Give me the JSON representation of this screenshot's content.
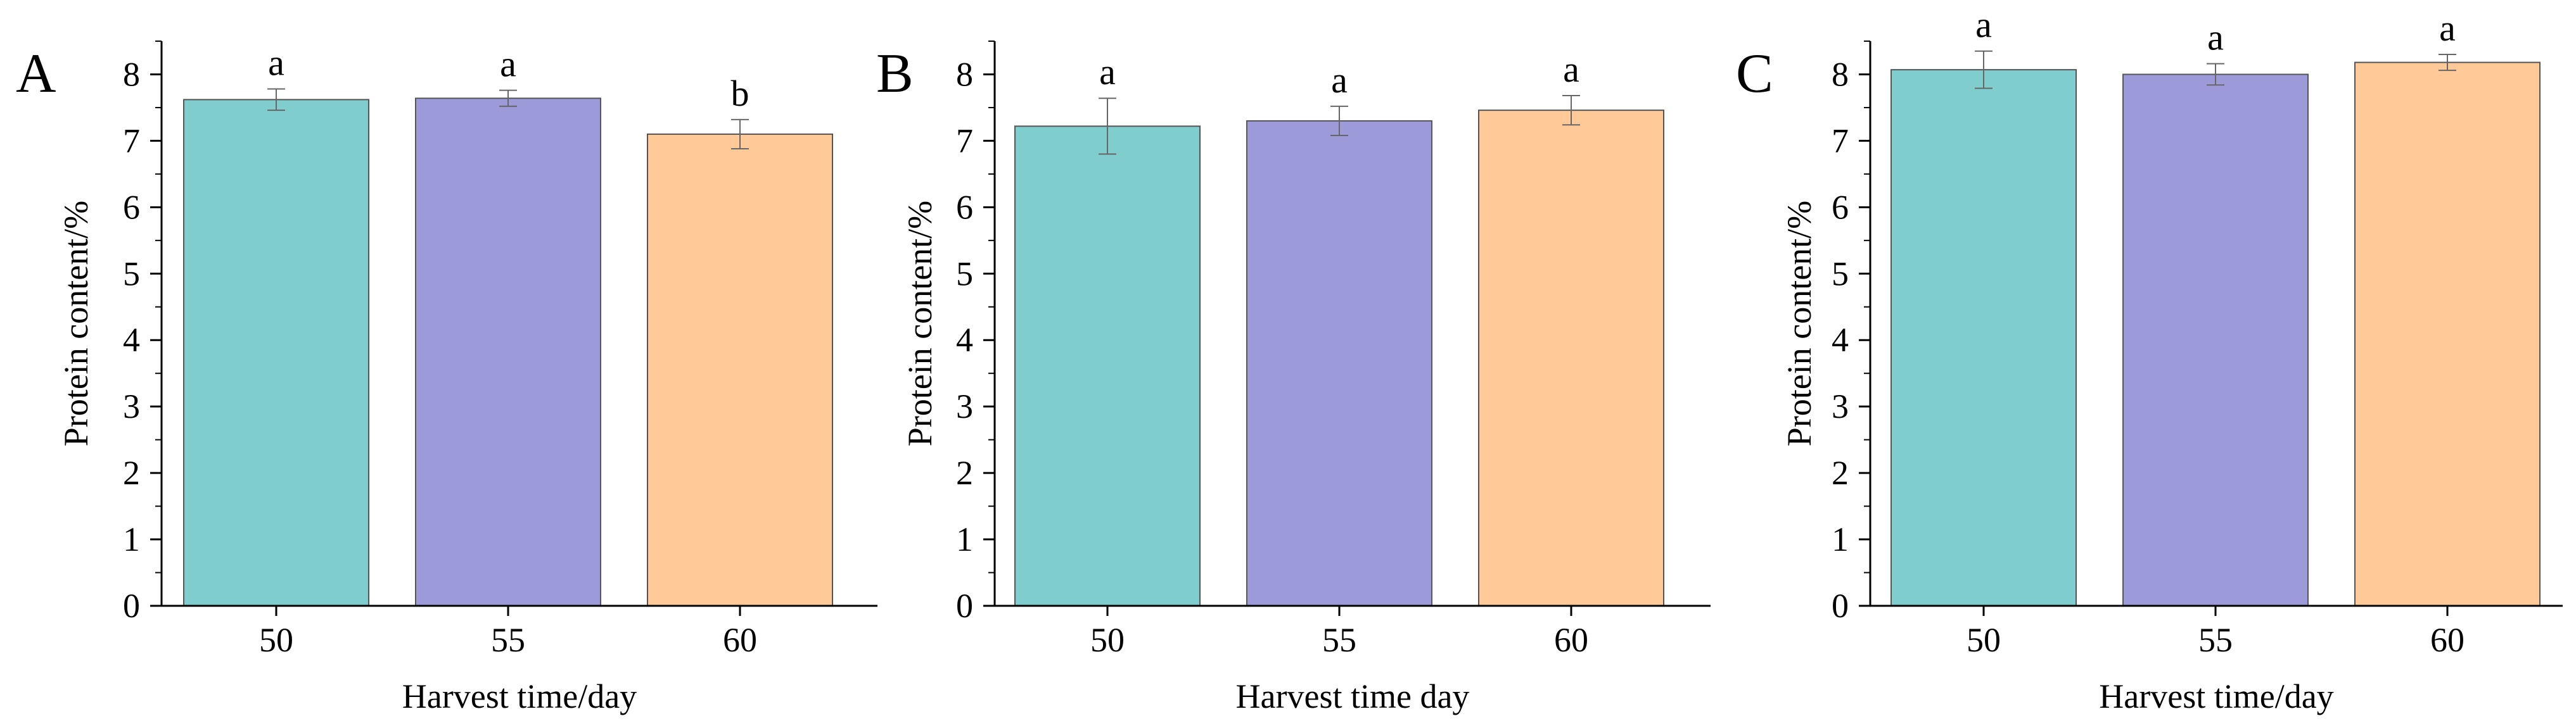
{
  "chart_data": [
    {
      "type": "bar",
      "panel_label": "A",
      "categories": [
        "50",
        "55",
        "60"
      ],
      "values": [
        7.62,
        7.64,
        7.1
      ],
      "errors": [
        0.16,
        0.12,
        0.22
      ],
      "significance": [
        "a",
        "a",
        "b"
      ],
      "colors": [
        "#80cdcd",
        "#9c9ad9",
        "#ffca98"
      ],
      "xlabel": "Harvest time/day",
      "ylabel": "Protein content/%",
      "ylim": [
        0,
        8.5
      ],
      "yticks": [
        "0",
        "1",
        "2",
        "3",
        "4",
        "5",
        "6",
        "7",
        "8"
      ],
      "grid": false
    },
    {
      "type": "bar",
      "panel_label": "B",
      "categories": [
        "50",
        "55",
        "60"
      ],
      "values": [
        7.22,
        7.3,
        7.46
      ],
      "errors": [
        0.42,
        0.22,
        0.22
      ],
      "significance": [
        "a",
        "a",
        "a"
      ],
      "colors": [
        "#80cdcd",
        "#9c9ad9",
        "#ffca98"
      ],
      "xlabel": "Harvest time day",
      "ylabel": "Protein content/%",
      "ylim": [
        0,
        8.5
      ],
      "yticks": [
        "0",
        "1",
        "2",
        "3",
        "4",
        "5",
        "6",
        "7",
        "8"
      ],
      "grid": false
    },
    {
      "type": "bar",
      "panel_label": "C",
      "categories": [
        "50",
        "55",
        "60"
      ],
      "values": [
        8.07,
        8.0,
        8.18
      ],
      "errors": [
        0.28,
        0.16,
        0.12
      ],
      "significance": [
        "a",
        "a",
        "a"
      ],
      "colors": [
        "#80cdcd",
        "#9c9ad9",
        "#ffca98"
      ],
      "xlabel": "Harvest time/day",
      "ylabel": "Protein content/%",
      "ylim": [
        0,
        8.5
      ],
      "yticks": [
        "0",
        "1",
        "2",
        "3",
        "4",
        "5",
        "6",
        "7",
        "8"
      ],
      "grid": false
    }
  ]
}
